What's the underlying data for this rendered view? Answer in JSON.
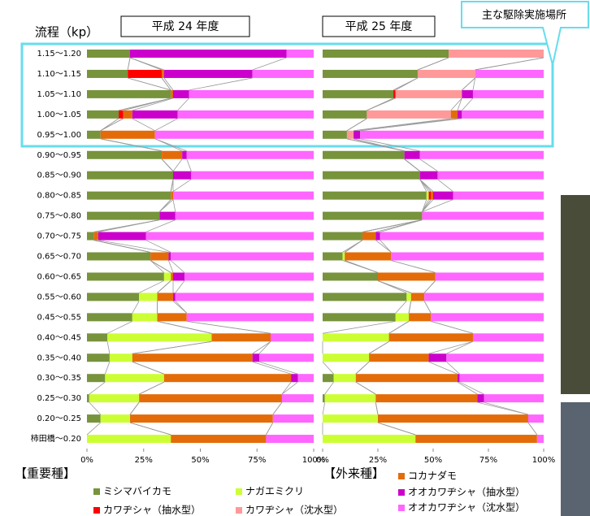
{
  "chart_data": {
    "type": "bar",
    "orientation": "horizontal",
    "stacked": true,
    "ylabel": "流程（kp）",
    "annotation": "主な駆除実施場所",
    "categories": [
      "1.15～1.20",
      "1.10～1.15",
      "1.05～1.10",
      "1.00～1.05",
      "0.95～1.00",
      "0.90～0.95",
      "0.85～0.90",
      "0.80～0.85",
      "0.75～0.80",
      "0.70～0.75",
      "0.65～0.70",
      "0.60～0.65",
      "0.55～0.60",
      "0.45～0.55",
      "0.40～0.45",
      "0.35～0.40",
      "0.30～0.35",
      "0.25～0.30",
      "0.20～0.25",
      "柿田橋～0.20"
    ],
    "xlim": [
      0,
      100
    ],
    "xticks": [
      {
        "value": 0,
        "label": "0%"
      },
      {
        "value": 25,
        "label": "25%"
      },
      {
        "value": 50,
        "label": "50%"
      },
      {
        "value": 75,
        "label": "75%"
      },
      {
        "value": 100,
        "label": "100%"
      }
    ],
    "legend_groups": [
      "【重要種】",
      "【外来種】"
    ],
    "series": [
      {
        "name": "ミシマバイカモ",
        "color": "#77933c"
      },
      {
        "name": "ナガエミクリ",
        "color": "#ccff33"
      },
      {
        "name": "カワヂシャ（抽水型）",
        "color": "#ff0000"
      },
      {
        "name": "カワヂシャ（沈水型）",
        "color": "#ff9999"
      },
      {
        "name": "コカナダモ",
        "color": "#e36c09"
      },
      {
        "name": "オオカワヂシャ（抽水型）",
        "color": "#cc00cc"
      },
      {
        "name": "オオカワヂシャ（沈水型）",
        "color": "#ff66ff"
      }
    ],
    "panels": [
      {
        "title": "平成 24 年度",
        "values": [
          [
            19,
            18,
            37,
            14,
            6,
            33,
            38,
            37,
            32,
            3,
            28,
            34,
            23,
            20,
            9,
            10,
            8,
            1,
            6,
            0
          ],
          [
            0,
            0,
            0,
            0,
            0,
            0,
            0,
            0,
            0,
            0,
            0,
            3,
            8,
            11,
            46,
            10,
            26,
            22,
            13,
            37
          ],
          [
            0,
            15,
            0,
            2,
            0,
            0,
            0,
            0,
            0,
            0,
            0,
            0,
            0,
            0,
            0,
            0,
            0,
            0,
            0,
            0
          ],
          [
            0,
            0,
            0,
            0,
            0,
            0,
            0,
            0,
            0,
            0,
            0,
            0,
            0,
            0,
            0,
            0,
            0,
            0,
            0,
            0
          ],
          [
            0,
            1,
            1,
            4,
            24,
            9,
            0,
            1,
            0,
            2,
            8,
            1,
            7,
            13,
            26,
            53,
            56,
            63,
            63,
            42
          ],
          [
            69,
            39,
            7,
            20,
            0,
            2,
            8,
            0,
            7,
            21,
            1,
            5,
            1,
            0,
            0,
            3,
            3,
            0,
            0,
            0
          ],
          [
            12,
            27,
            55,
            60,
            70,
            56,
            54,
            62,
            61,
            74,
            63,
            57,
            61,
            56,
            19,
            24,
            7,
            14,
            18,
            21
          ]
        ]
      },
      {
        "title": "平成 25 年度",
        "values": [
          [
            57,
            43,
            32,
            20,
            11,
            37,
            44,
            47,
            45,
            18,
            9,
            25,
            38,
            33,
            0,
            0,
            5,
            1,
            0,
            0
          ],
          [
            0,
            0,
            0,
            0,
            0,
            0,
            0,
            1,
            0,
            0,
            1,
            0,
            2,
            6,
            30,
            21,
            10,
            23,
            25,
            42
          ],
          [
            0,
            0,
            1,
            0,
            0,
            0,
            0,
            1,
            0,
            0,
            0,
            0,
            0,
            0,
            0,
            0,
            0,
            0,
            0,
            0
          ],
          [
            43,
            26,
            30,
            38,
            3,
            0,
            0,
            0,
            0,
            0,
            0,
            0,
            0,
            0,
            0,
            0,
            0,
            0,
            0,
            0
          ],
          [
            0,
            0,
            0,
            3,
            0,
            0,
            0,
            1,
            0,
            6,
            21,
            26,
            6,
            10,
            38,
            27,
            46,
            46,
            68,
            55
          ],
          [
            0,
            0,
            5,
            2,
            3,
            7,
            8,
            9,
            0,
            2,
            0,
            0,
            0,
            0,
            0,
            8,
            1,
            3,
            0,
            0
          ],
          [
            0,
            31,
            32,
            37,
            83,
            56,
            48,
            41,
            55,
            74,
            69,
            49,
            54,
            51,
            32,
            44,
            38,
            27,
            7,
            3
          ]
        ]
      }
    ]
  }
}
